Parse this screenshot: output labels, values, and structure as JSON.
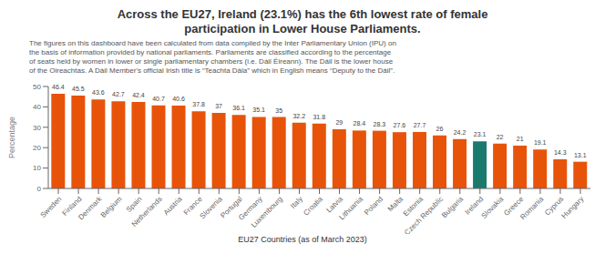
{
  "chart_data": {
    "type": "bar",
    "title": "Across the EU27, Ireland (23.1%) has the 6th lowest rate of female\nparticipation in Lower House Parliaments.",
    "subtitle": "The figures on this dashboard have been calculated from data compiled by the Inter Parliamentary Union (IPU) on\nthe basis of information provided by national parliaments. Parliaments are classified according to the percentage\nof seats held by women in lower or single parliamentary chambers (i.e. Dáil Éireann). The Dáil is the lower house\nof the Oireachtas. A Dáil Member's official Irish title is “Teachta Dála” which in English means “Deputy to the Dáil”.",
    "xlabel": "EU27 Countries (as of March 2023)",
    "ylabel": "Percentage",
    "categories": [
      "Sweden",
      "Finland",
      "Denmark",
      "Belgium",
      "Spain",
      "Netherlands",
      "Austria",
      "France",
      "Slovenia",
      "Portugal",
      "Germany",
      "Luxembourg",
      "Italy",
      "Croatia",
      "Latvia",
      "Lithuania",
      "Poland",
      "Malta",
      "Estonia",
      "Czech Republic",
      "Bulgaria",
      "Ireland",
      "Slovakia",
      "Greece",
      "Romania",
      "Cyprus",
      "Hungary"
    ],
    "values": [
      46.4,
      45.5,
      43.6,
      42.7,
      42.4,
      40.7,
      40.6,
      37.8,
      37.0,
      36.1,
      35.1,
      35,
      32.2,
      31.8,
      29,
      28.4,
      28.3,
      27.6,
      27.7,
      26,
      24.2,
      23.1,
      22,
      21,
      19.1,
      14.3,
      13.1
    ],
    "colors": [
      "#e8530a",
      "#e8530a",
      "#e8530a",
      "#e8530a",
      "#e8530a",
      "#e8530a",
      "#e8530a",
      "#e8530a",
      "#e8530a",
      "#e8530a",
      "#e8530a",
      "#e8530a",
      "#e8530a",
      "#e8530a",
      "#e8530a",
      "#e8530a",
      "#e8530a",
      "#e8530a",
      "#e8530a",
      "#e8530a",
      "#e8530a",
      "#1a7a6e",
      "#e8530a",
      "#e8530a",
      "#e8530a",
      "#e8530a",
      "#e8530a"
    ],
    "ylim": [
      0,
      50
    ],
    "yticks": [
      0,
      10,
      20,
      30,
      40,
      50
    ],
    "data_labels": true
  }
}
